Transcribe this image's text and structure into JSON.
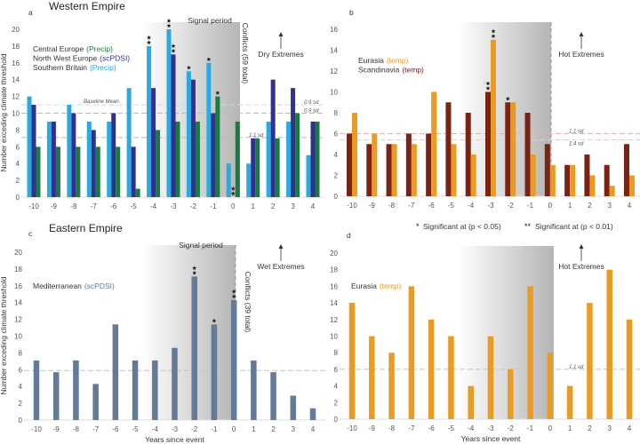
{
  "titles": {
    "west": "Western Empire",
    "east": "Eastern Empire"
  },
  "significance_legend": {
    "one": "Significant at (p < 0.05)",
    "two": "Significant at (p < 0.01)",
    "one_mark": "*",
    "two_mark": "**"
  },
  "chart_data": [
    {
      "panel": "a",
      "type": "bar",
      "categories": [
        "-10",
        "-9",
        "-8",
        "-7",
        "-6",
        "-5",
        "-4",
        "-3",
        "-2",
        "-1",
        "0",
        "1",
        "2",
        "3",
        "4"
      ],
      "ylabel": "Number exceding climate threshold",
      "xlabel": "",
      "ylim": [
        0,
        20
      ],
      "yticks": [
        0,
        2,
        4,
        6,
        8,
        10,
        12,
        14,
        16,
        18,
        20
      ],
      "signal_period_label": "Signal period",
      "conflicts_label": "Conflicts (59 total)",
      "extremes_label": "Dry Extremes",
      "series": [
        {
          "name": "Southern Britain",
          "variable": "(Precip)",
          "color": "#29abe2",
          "values": [
            12,
            9,
            11,
            9,
            9,
            13,
            18,
            20,
            15,
            16,
            4,
            4,
            9,
            9,
            5
          ],
          "stars": [
            "",
            "",
            "",
            "",
            "",
            "",
            "**",
            "**",
            "*",
            "*",
            "",
            "",
            "",
            "",
            ""
          ]
        },
        {
          "name": "North West Europe",
          "variable": "(scPDSI)",
          "color": "#2e3192",
          "values": [
            11,
            9,
            10,
            8,
            10,
            6,
            13,
            17,
            14,
            10,
            0,
            7,
            14,
            13,
            9
          ],
          "stars": [
            "",
            "",
            "",
            "",
            "",
            "",
            "",
            "**",
            "",
            "",
            "**",
            "",
            "",
            "",
            ""
          ]
        },
        {
          "name": "Central Europe",
          "variable": "(Precip)",
          "color": "#1b7a3e",
          "values": [
            6,
            6,
            6,
            6,
            6,
            1,
            8,
            9,
            9,
            12,
            9,
            7,
            7,
            10,
            9
          ],
          "stars": [
            "",
            "",
            "",
            "",
            "",
            "",
            "",
            "",
            "",
            "*",
            "",
            "",
            "",
            "",
            ""
          ]
        }
      ],
      "legend_order": [
        2,
        1,
        0
      ],
      "reference_lines": [
        {
          "value": 11,
          "label": "0.9 sd",
          "color": "#b8e0f2",
          "note": "Baseline Mean"
        },
        {
          "value": 10,
          "label": "0.9 sd",
          "color": "#b7b9dc"
        },
        {
          "value": 7.1,
          "label": "1.1 sd",
          "color": "#b9b9b9"
        }
      ]
    },
    {
      "panel": "b",
      "type": "bar",
      "categories": [
        "-10",
        "-9",
        "-8",
        "-7",
        "-6",
        "-5",
        "-4",
        "-3",
        "-2",
        "-1",
        "0",
        "1",
        "2",
        "3",
        "4"
      ],
      "ylabel": "",
      "xlabel": "",
      "ylim": [
        0,
        16
      ],
      "yticks": [
        0,
        2,
        4,
        6,
        8,
        10,
        12,
        14,
        16
      ],
      "signal_period_label": "",
      "conflicts_label": "",
      "extremes_label": "Hot Extremes",
      "series": [
        {
          "name": "Scandinavia",
          "variable": "(temp)",
          "color": "#7a2314",
          "values": [
            6,
            5,
            5,
            6,
            6,
            9,
            8,
            10,
            9,
            8,
            5,
            3,
            4,
            3,
            5
          ],
          "stars": [
            "",
            "",
            "",
            "",
            "",
            "",
            "",
            "**",
            "*",
            "",
            "",
            "",
            "",
            "",
            ""
          ]
        },
        {
          "name": "Eurasia",
          "variable": "(temp)",
          "color": "#eb9b22",
          "values": [
            8,
            6,
            5,
            5,
            10,
            5,
            4,
            15,
            9,
            4,
            3,
            3,
            2,
            1,
            2
          ],
          "stars": [
            "",
            "",
            "",
            "",
            "",
            "",
            "",
            "**",
            "",
            "",
            "",
            "",
            "",
            "",
            ""
          ]
        }
      ],
      "legend_order": [
        1,
        0
      ],
      "reference_lines": [
        {
          "value": 6,
          "label": "1.1 sd",
          "color": "#d8b9b0"
        },
        {
          "value": 5.4,
          "label": "1.4 sd",
          "color": "#f5cf96"
        }
      ]
    },
    {
      "panel": "c",
      "type": "bar",
      "categories": [
        "-10",
        "-9",
        "-8",
        "-7",
        "-6",
        "-5",
        "-4",
        "-3",
        "-2",
        "-1",
        "0",
        "1",
        "2",
        "3",
        "4"
      ],
      "ylabel": "Number exceding climate threshold",
      "xlabel": "Years since event",
      "ylim": [
        0,
        20
      ],
      "yticks": [
        0,
        2,
        4,
        6,
        8,
        10,
        12,
        14,
        16,
        18,
        20
      ],
      "signal_period_label": "Signal period",
      "conflicts_label": "Conflicts (39 total)",
      "extremes_label": "Wet Extremes",
      "series": [
        {
          "name": "Mediterranean",
          "variable": "(scPDSI)",
          "color": "#647a97",
          "values": [
            7.1,
            5.7,
            7.1,
            4.3,
            11.4,
            7.1,
            7.1,
            8.6,
            17.1,
            11.4,
            14.3,
            7.1,
            5.7,
            2.9,
            1.4
          ],
          "stars": [
            "",
            "",
            "",
            "",
            "",
            "",
            "",
            "",
            "**",
            "*",
            "**",
            "",
            "",
            "",
            ""
          ]
        }
      ],
      "legend_order": [
        0
      ],
      "reference_lines": [
        {
          "value": 5.9,
          "label": "",
          "color": "#c4c4c4"
        }
      ]
    },
    {
      "panel": "d",
      "type": "bar",
      "categories": [
        "-10",
        "-9",
        "-8",
        "-7",
        "-6",
        "-5",
        "-4",
        "-3",
        "-2",
        "-1",
        "0",
        "1",
        "2",
        "3",
        "4"
      ],
      "ylabel": "",
      "xlabel": "Years since event",
      "ylim": [
        0,
        20
      ],
      "yticks": [
        0,
        2,
        4,
        6,
        8,
        10,
        12,
        14,
        16,
        18,
        20
      ],
      "signal_period_label": "",
      "conflicts_label": "",
      "extremes_label": "Hot Extremes",
      "series": [
        {
          "name": "Eurasia",
          "variable": "(temp)",
          "color": "#eb9b22",
          "values": [
            14,
            10,
            8,
            16,
            12,
            10,
            4,
            10,
            6,
            16,
            8,
            4,
            14,
            18,
            12
          ],
          "stars": [
            "",
            "",
            "",
            "",
            "",
            "",
            "",
            "",
            "",
            "",
            "",
            "",
            "",
            "",
            ""
          ]
        }
      ],
      "legend_order": [
        0
      ],
      "reference_lines": [
        {
          "value": 6,
          "label": "1.1 sd",
          "color": "#c4c4c4"
        }
      ]
    }
  ]
}
